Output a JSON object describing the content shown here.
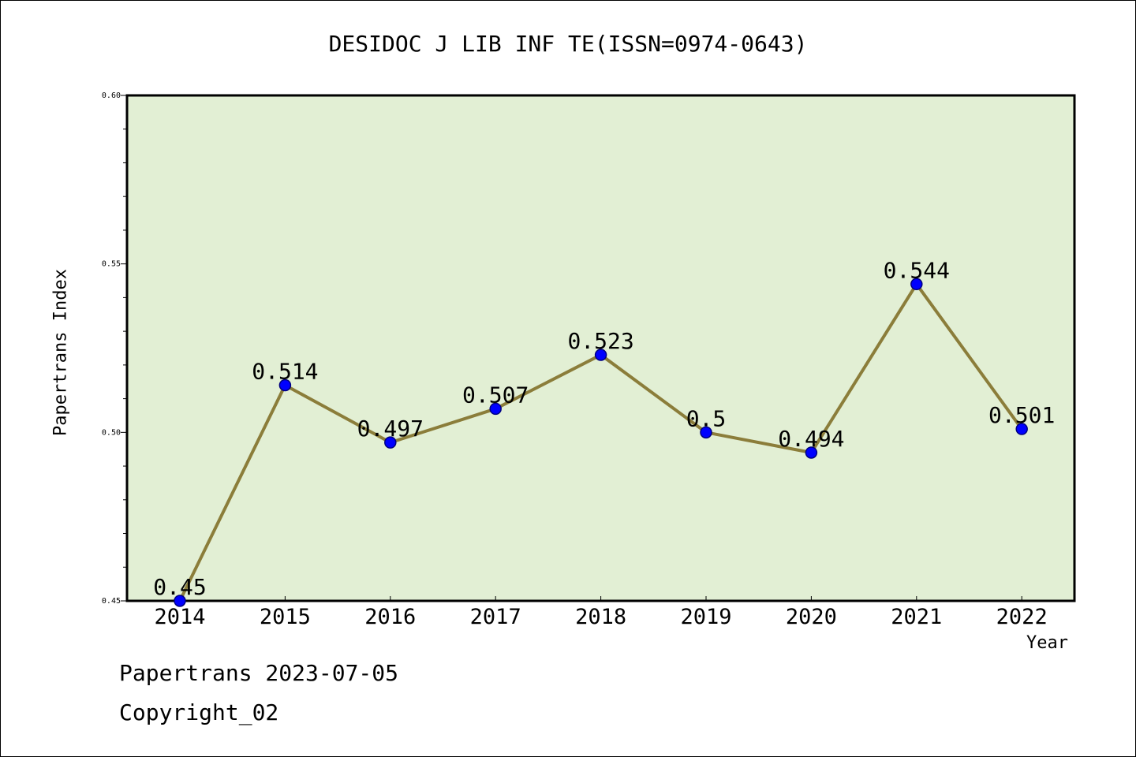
{
  "chart_data": {
    "type": "line",
    "title": "DESIDOC J LIB INF TE(ISSN=0974-0643)",
    "xlabel": "Year",
    "ylabel": "Papertrans Index",
    "categories": [
      "2014",
      "2015",
      "2016",
      "2017",
      "2018",
      "2019",
      "2020",
      "2021",
      "2022"
    ],
    "series": [
      {
        "values": [
          0.45,
          0.514,
          0.497,
          0.507,
          0.523,
          0.5,
          0.494,
          0.544,
          0.501
        ],
        "data_labels": [
          "0.45",
          "0.514",
          "0.497",
          "0.507",
          "0.523",
          "0.5",
          "0.494",
          "0.544",
          "0.501"
        ]
      }
    ],
    "ylim": [
      0.45,
      0.6
    ],
    "yticks": [
      "0.45",
      "0.50",
      "0.55",
      "0.60"
    ],
    "grid": false,
    "legend": "none",
    "colors": {
      "plot_background": "#e2efd4",
      "line": "#8b7d3a",
      "marker": "#0000ff",
      "marker_edge": "#000080"
    }
  },
  "footer": {
    "date_text": "Papertrans 2023-07-05",
    "copyright_text": "Copyright_02"
  }
}
